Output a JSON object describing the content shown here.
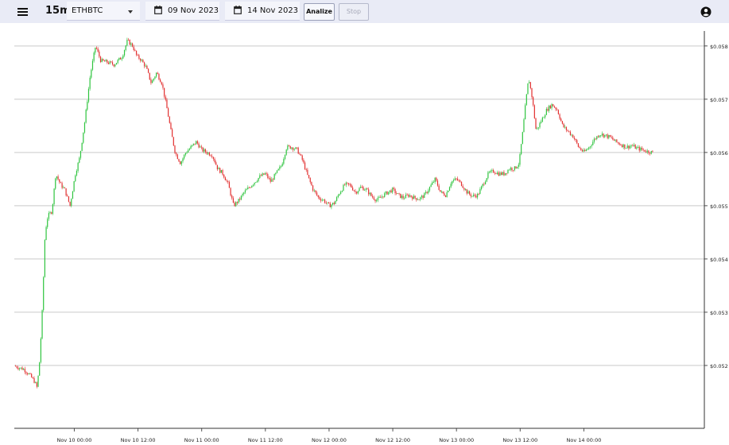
{
  "toolbar": {
    "interval": "15m",
    "symbol": "ETHBTC",
    "start_date": "09 Nov 2023",
    "end_date": "14 Nov 2023",
    "analize_label": "Analize",
    "stop_label": "Stop"
  },
  "icons": {
    "menu": "menu-icon",
    "dropdown": "chevron-down-icon",
    "calendar": "calendar-icon",
    "account": "account-circle-icon"
  },
  "colors": {
    "up": "#2fc43f",
    "down": "#e23030",
    "toolbar_bg": "#e9ebf6"
  },
  "chart_data": {
    "type": "candlestick",
    "y_ticks": [
      "$0.058",
      "$0.057",
      "$0.056",
      "$0.055",
      "$0.054",
      "$0.053",
      "$0.052"
    ],
    "y_tick_values": [
      0.058,
      0.057,
      0.056,
      0.055,
      0.054,
      0.053,
      0.052
    ],
    "x_ticks": [
      "Nov 10 00:00",
      "Nov 10 12:00",
      "Nov 11 00:00",
      "Nov 11 12:00",
      "Nov 12 00:00",
      "Nov 12 12:00",
      "Nov 13 00:00",
      "Nov 13 12:00",
      "Nov 14 00:00"
    ],
    "x_tick_hours": [
      0,
      12,
      24,
      36,
      48,
      60,
      72,
      84,
      96
    ],
    "x_range_hours": [
      -11.3,
      118.7
    ],
    "ylim": [
      0.05082,
      0.05843
    ],
    "interval_hours": 0.25,
    "grid": true,
    "close_path": [
      [
        -11.3,
        0.05199
      ],
      [
        -9.5,
        0.05193
      ],
      [
        -8.5,
        0.05183
      ],
      [
        -7.5,
        0.0517
      ],
      [
        -7.0,
        0.05158
      ],
      [
        -6.5,
        0.05212
      ],
      [
        -6.0,
        0.0531
      ],
      [
        -5.5,
        0.0545
      ],
      [
        -5.0,
        0.0548
      ],
      [
        -4.2,
        0.0549
      ],
      [
        -3.5,
        0.0556
      ],
      [
        -2.6,
        0.0554
      ],
      [
        -1.8,
        0.0553
      ],
      [
        -0.8,
        0.055
      ],
      [
        0.2,
        0.0556
      ],
      [
        1.0,
        0.0559
      ],
      [
        2.0,
        0.0566
      ],
      [
        3.0,
        0.05745
      ],
      [
        4.0,
        0.058
      ],
      [
        5.0,
        0.05772
      ],
      [
        6.0,
        0.0577
      ],
      [
        7.5,
        0.05765
      ],
      [
        9.0,
        0.0578
      ],
      [
        10.0,
        0.0581
      ],
      [
        11.0,
        0.058
      ],
      [
        11.8,
        0.0578
      ],
      [
        12.5,
        0.05775
      ],
      [
        13.5,
        0.0576
      ],
      [
        14.5,
        0.0573
      ],
      [
        15.5,
        0.0575
      ],
      [
        16.5,
        0.0573
      ],
      [
        17.5,
        0.0568
      ],
      [
        18.2,
        0.0564
      ],
      [
        19.0,
        0.056
      ],
      [
        20.0,
        0.0558
      ],
      [
        21.0,
        0.056
      ],
      [
        22.0,
        0.0561
      ],
      [
        23.0,
        0.0562
      ],
      [
        24.0,
        0.05605
      ],
      [
        25.0,
        0.056
      ],
      [
        26.0,
        0.05595
      ],
      [
        27.0,
        0.0557
      ],
      [
        28.0,
        0.0556
      ],
      [
        29.0,
        0.0554
      ],
      [
        30.0,
        0.055
      ],
      [
        31.0,
        0.0551
      ],
      [
        32.0,
        0.05525
      ],
      [
        33.0,
        0.05535
      ],
      [
        34.0,
        0.05545
      ],
      [
        35.0,
        0.05555
      ],
      [
        36.0,
        0.0556
      ],
      [
        37.0,
        0.05545
      ],
      [
        38.0,
        0.0556
      ],
      [
        39.0,
        0.05575
      ],
      [
        40.0,
        0.0561
      ],
      [
        41.0,
        0.0561
      ],
      [
        42.0,
        0.05605
      ],
      [
        43.0,
        0.05585
      ],
      [
        44.0,
        0.05555
      ],
      [
        45.0,
        0.0553
      ],
      [
        46.0,
        0.05515
      ],
      [
        47.0,
        0.0551
      ],
      [
        48.0,
        0.055
      ],
      [
        49.0,
        0.05505
      ],
      [
        50.0,
        0.05525
      ],
      [
        51.0,
        0.0554
      ],
      [
        52.0,
        0.05538
      ],
      [
        53.0,
        0.05525
      ],
      [
        54.0,
        0.05535
      ],
      [
        55.0,
        0.0553
      ],
      [
        56.0,
        0.05518
      ],
      [
        57.0,
        0.0551
      ],
      [
        58.0,
        0.05518
      ],
      [
        59.0,
        0.05525
      ],
      [
        60.0,
        0.0553
      ],
      [
        61.0,
        0.0552
      ],
      [
        62.0,
        0.05515
      ],
      [
        63.0,
        0.0552
      ],
      [
        64.0,
        0.05515
      ],
      [
        65.0,
        0.05513
      ],
      [
        66.0,
        0.0552
      ],
      [
        67.0,
        0.05535
      ],
      [
        68.0,
        0.0555
      ],
      [
        69.0,
        0.05525
      ],
      [
        70.0,
        0.0552
      ],
      [
        71.0,
        0.05545
      ],
      [
        72.0,
        0.0555
      ],
      [
        73.0,
        0.0554
      ],
      [
        74.0,
        0.05525
      ],
      [
        75.0,
        0.05518
      ],
      [
        76.0,
        0.0552
      ],
      [
        77.0,
        0.0554
      ],
      [
        78.0,
        0.0556
      ],
      [
        79.0,
        0.05565
      ],
      [
        80.0,
        0.0556
      ],
      [
        81.0,
        0.0556
      ],
      [
        82.0,
        0.0557
      ],
      [
        83.0,
        0.0557
      ],
      [
        83.8,
        0.0558
      ],
      [
        84.5,
        0.0564
      ],
      [
        85.0,
        0.0569
      ],
      [
        85.6,
        0.0574
      ],
      [
        86.3,
        0.057
      ],
      [
        87.0,
        0.0564
      ],
      [
        88.0,
        0.0566
      ],
      [
        89.0,
        0.0568
      ],
      [
        90.0,
        0.0569
      ],
      [
        91.0,
        0.0568
      ],
      [
        92.0,
        0.0565
      ],
      [
        93.0,
        0.0564
      ],
      [
        94.0,
        0.0563
      ],
      [
        95.0,
        0.0561
      ],
      [
        96.0,
        0.056
      ],
      [
        97.0,
        0.0561
      ],
      [
        98.0,
        0.05625
      ],
      [
        99.0,
        0.05635
      ],
      [
        100.0,
        0.05632
      ],
      [
        101.0,
        0.05628
      ],
      [
        102.0,
        0.0562
      ],
      [
        103.0,
        0.05615
      ],
      [
        104.0,
        0.0561
      ],
      [
        105.0,
        0.05613
      ],
      [
        106.0,
        0.05608
      ],
      [
        107.0,
        0.05605
      ],
      [
        108.0,
        0.05602
      ],
      [
        109.0,
        0.056
      ]
    ]
  }
}
